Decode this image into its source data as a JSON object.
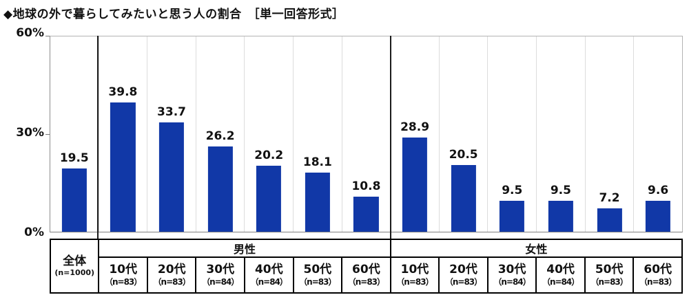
{
  "chart_data": {
    "type": "bar",
    "title": "◆地球の外で暮らしてみたいと思う人の割合　［単一回答形式］",
    "ylim": [
      0,
      60
    ],
    "yticks": [
      "0%",
      "30%",
      "60%"
    ],
    "grid": "vertical-column-separators",
    "legend": "none",
    "bar_color": "#1138a7",
    "groups": [
      {
        "label": "男性"
      },
      {
        "label": "女性"
      }
    ],
    "columns": [
      {
        "group": "全体",
        "label": "全体",
        "n": "(n=1000)",
        "value": 19.5
      },
      {
        "group": "男性",
        "label": "10代",
        "n": "（n=83）",
        "value": 39.8
      },
      {
        "group": "男性",
        "label": "20代",
        "n": "（n=83）",
        "value": 33.7
      },
      {
        "group": "男性",
        "label": "30代",
        "n": "（n=84）",
        "value": 26.2
      },
      {
        "group": "男性",
        "label": "40代",
        "n": "（n=84）",
        "value": 20.2
      },
      {
        "group": "男性",
        "label": "50代",
        "n": "（n=83）",
        "value": 18.1
      },
      {
        "group": "男性",
        "label": "60代",
        "n": "（n=83）",
        "value": 10.8
      },
      {
        "group": "女性",
        "label": "10代",
        "n": "（n=83）",
        "value": 28.9
      },
      {
        "group": "女性",
        "label": "20代",
        "n": "（n=83）",
        "value": 20.5
      },
      {
        "group": "女性",
        "label": "30代",
        "n": "（n=84）",
        "value": 9.5
      },
      {
        "group": "女性",
        "label": "40代",
        "n": "（n=84）",
        "value": 9.5
      },
      {
        "group": "女性",
        "label": "50代",
        "n": "（n=83）",
        "value": 7.2
      },
      {
        "group": "女性",
        "label": "60代",
        "n": "（n=83）",
        "value": 9.6
      }
    ]
  }
}
